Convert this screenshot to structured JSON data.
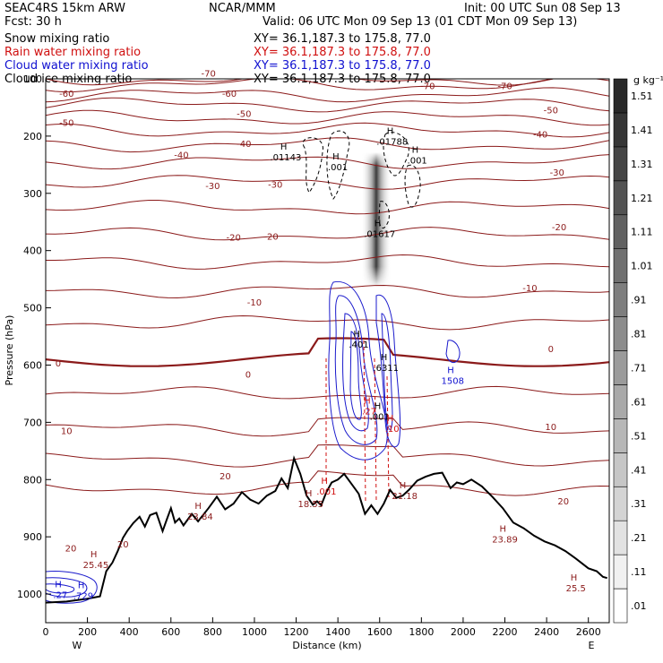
{
  "header": {
    "model": "SEAC4RS 15km ARW",
    "forecast": "Fcst:   30 h",
    "center": "NCAR/MMM",
    "init": "Init: 00 UTC Sun 08 Sep 13",
    "valid": "Valid: 06 UTC Mon 09 Sep 13 (01 CDT Mon 09 Sep 13)"
  },
  "fields": [
    {
      "name": "Snow mixing ratio",
      "xy": "XY=  36.1,187.3 to 175.8, 77.0",
      "color": "#000000"
    },
    {
      "name": "Rain water mixing ratio",
      "xy": "XY=  36.1,187.3 to 175.8, 77.0",
      "color": "#d01010"
    },
    {
      "name": "Cloud water mixing ratio",
      "xy": "XY=  36.1,187.3 to 175.8, 77.0",
      "color": "#1010d0"
    },
    {
      "name": "Cloud ice mixing ratio",
      "xy": "XY=  36.1,187.3 to 175.8, 77.0",
      "color": "#000000"
    }
  ],
  "chart_data": {
    "type": "contour-cross-section",
    "xlabel": "Distance (km)",
    "ylabel": "Pressure (hPa)",
    "xlim": [
      0,
      2700
    ],
    "ylim": [
      1050,
      100
    ],
    "xticks": [
      0,
      200,
      400,
      600,
      800,
      1000,
      1200,
      1400,
      1600,
      1800,
      2000,
      2200,
      2400,
      2600
    ],
    "yticks": [
      100,
      200,
      300,
      400,
      500,
      600,
      700,
      800,
      900,
      1000
    ],
    "x_end_labels": {
      "left": "W",
      "right": "E"
    },
    "colorbar": {
      "unit": "g kg⁻¹",
      "levels": [
        ".01",
        ".11",
        ".21",
        ".31",
        ".41",
        ".51",
        ".61",
        ".71",
        ".81",
        ".91",
        "1.01",
        "1.11",
        "1.21",
        "1.31",
        "1.41",
        "1.51"
      ]
    },
    "temperature_contour_labels": [
      {
        "text": "-70",
        "x": 780,
        "p": 90
      },
      {
        "text": "-70",
        "x": 1830,
        "p": 112
      },
      {
        "text": "-70",
        "x": 2200,
        "p": 112
      },
      {
        "text": "-60",
        "x": 100,
        "p": 125
      },
      {
        "text": "-60",
        "x": 880,
        "p": 125
      },
      {
        "text": "-50",
        "x": 100,
        "p": 176
      },
      {
        "text": "-50",
        "x": 950,
        "p": 160
      },
      {
        "text": "-50",
        "x": 2420,
        "p": 154
      },
      {
        "text": "-40",
        "x": 650,
        "p": 232
      },
      {
        "text": "-40",
        "x": 950,
        "p": 213
      },
      {
        "text": "-40",
        "x": 2370,
        "p": 196
      },
      {
        "text": "-30",
        "x": 800,
        "p": 286
      },
      {
        "text": "-30",
        "x": 1100,
        "p": 284
      },
      {
        "text": "-30",
        "x": 2450,
        "p": 263
      },
      {
        "text": "-20",
        "x": 900,
        "p": 376
      },
      {
        "text": "-20",
        "x": 1080,
        "p": 375
      },
      {
        "text": "-20",
        "x": 2460,
        "p": 358
      },
      {
        "text": "-10",
        "x": 1000,
        "p": 490
      },
      {
        "text": "-10",
        "x": 2320,
        "p": 465
      },
      {
        "text": "0",
        "x": 60,
        "p": 596
      },
      {
        "text": "0",
        "x": 970,
        "p": 616
      },
      {
        "text": "0",
        "x": 2420,
        "p": 571
      },
      {
        "text": "10",
        "x": 100,
        "p": 714
      },
      {
        "text": "10",
        "x": 2420,
        "p": 707
      },
      {
        "text": "20",
        "x": 860,
        "p": 793
      },
      {
        "text": "20",
        "x": 2480,
        "p": 837
      },
      {
        "text": "20",
        "x": 120,
        "p": 919
      },
      {
        "text": "20",
        "x": 370,
        "p": 912
      }
    ],
    "max_labels": [
      {
        "text": ".01143",
        "x": 1150,
        "p": 236,
        "color": "#000000"
      },
      {
        "text": ".001",
        "x": 1400,
        "p": 253,
        "color": "#000000"
      },
      {
        "text": ".01788",
        "x": 1660,
        "p": 209,
        "color": "#000000"
      },
      {
        "text": ".001",
        "x": 1780,
        "p": 242,
        "color": "#000000"
      },
      {
        "text": ".01617",
        "x": 1600,
        "p": 370,
        "color": "#000000"
      },
      {
        "text": ".401",
        "x": 1500,
        "p": 563,
        "color": "#000000"
      },
      {
        "text": ".6311",
        "x": 1630,
        "p": 604,
        "color": "#000000"
      },
      {
        "text": ".001",
        "x": 1600,
        "p": 689,
        "color": "#000000"
      },
      {
        "text": "1508",
        "x": 1950,
        "p": 627,
        "color": "#1010d0"
      },
      {
        "text": ".27",
        "x": 1550,
        "p": 680,
        "color": "#d01010"
      },
      {
        "text": ".10",
        "x": 1660,
        "p": 710,
        "color": "#d01010"
      },
      {
        "text": ".001",
        "x": 1345,
        "p": 820,
        "color": "#d01010"
      },
      {
        "text": "18.55",
        "x": 1270,
        "p": 842,
        "color": "#8b1a1a"
      },
      {
        "text": "21.18",
        "x": 1720,
        "p": 828,
        "color": "#8b1a1a"
      },
      {
        "text": "23.84",
        "x": 740,
        "p": 864,
        "color": "#8b1a1a"
      },
      {
        "text": "23.89",
        "x": 2200,
        "p": 904,
        "color": "#8b1a1a"
      },
      {
        "text": "25.45",
        "x": 240,
        "p": 948,
        "color": "#8b1a1a"
      },
      {
        "text": "25.5",
        "x": 2540,
        "p": 989,
        "color": "#8b1a1a"
      },
      {
        "text": ".729",
        "x": 180,
        "p": 1002,
        "color": "#1010d0"
      },
      {
        "text": ".27",
        "x": 70,
        "p": 1001,
        "color": "#1010d0"
      }
    ],
    "terrain": [
      [
        0,
        1015
      ],
      [
        100,
        1013
      ],
      [
        200,
        1008
      ],
      [
        260,
        1004
      ],
      [
        290,
        960
      ],
      [
        320,
        945
      ],
      [
        345,
        925
      ],
      [
        370,
        902
      ],
      [
        390,
        890
      ],
      [
        420,
        876
      ],
      [
        450,
        865
      ],
      [
        475,
        882
      ],
      [
        500,
        862
      ],
      [
        530,
        858
      ],
      [
        560,
        890
      ],
      [
        580,
        870
      ],
      [
        600,
        850
      ],
      [
        620,
        875
      ],
      [
        640,
        868
      ],
      [
        660,
        880
      ],
      [
        700,
        860
      ],
      [
        730,
        873
      ],
      [
        780,
        850
      ],
      [
        820,
        830
      ],
      [
        860,
        852
      ],
      [
        900,
        842
      ],
      [
        940,
        822
      ],
      [
        980,
        835
      ],
      [
        1020,
        842
      ],
      [
        1060,
        828
      ],
      [
        1100,
        820
      ],
      [
        1130,
        798
      ],
      [
        1160,
        815
      ],
      [
        1190,
        763
      ],
      [
        1220,
        790
      ],
      [
        1250,
        828
      ],
      [
        1280,
        844
      ],
      [
        1300,
        838
      ],
      [
        1320,
        845
      ],
      [
        1345,
        822
      ],
      [
        1370,
        805
      ],
      [
        1400,
        800
      ],
      [
        1430,
        790
      ],
      [
        1470,
        810
      ],
      [
        1500,
        825
      ],
      [
        1530,
        860
      ],
      [
        1560,
        845
      ],
      [
        1590,
        860
      ],
      [
        1620,
        842
      ],
      [
        1650,
        818
      ],
      [
        1680,
        832
      ],
      [
        1710,
        828
      ],
      [
        1740,
        818
      ],
      [
        1780,
        802
      ],
      [
        1820,
        795
      ],
      [
        1860,
        790
      ],
      [
        1900,
        788
      ],
      [
        1940,
        815
      ],
      [
        1970,
        805
      ],
      [
        2000,
        808
      ],
      [
        2040,
        800
      ],
      [
        2090,
        812
      ],
      [
        2140,
        830
      ],
      [
        2190,
        850
      ],
      [
        2240,
        875
      ],
      [
        2290,
        885
      ],
      [
        2340,
        898
      ],
      [
        2390,
        908
      ],
      [
        2440,
        915
      ],
      [
        2490,
        925
      ],
      [
        2540,
        938
      ],
      [
        2600,
        955
      ],
      [
        2640,
        960
      ],
      [
        2670,
        970
      ],
      [
        2690,
        972
      ]
    ]
  }
}
